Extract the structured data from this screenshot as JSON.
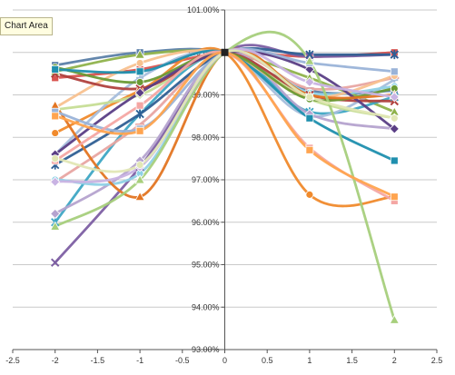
{
  "tooltip": {
    "label": "Chart Area"
  },
  "chart_data": {
    "type": "scatter",
    "title": "",
    "xlabel": "",
    "ylabel": "",
    "xlim": [
      -2.5,
      2.5
    ],
    "ylim": [
      93.0,
      101.0
    ],
    "y_unit": "%",
    "x_ticks": [
      -2.5,
      -2,
      -1.5,
      -1,
      -0.5,
      0,
      0.5,
      1,
      1.5,
      2,
      2.5
    ],
    "y_ticks": [
      93,
      94,
      95,
      96,
      97,
      98,
      99,
      100,
      101
    ],
    "x_tick_labels": [
      "-2.5",
      "-2",
      "-1.5",
      "-1",
      "-0.5",
      "0",
      "0.5",
      "1",
      "1.5",
      "2",
      "2.5"
    ],
    "y_tick_labels": [
      "93.00%",
      "94.00%",
      "95.00%",
      "96.00%",
      "97.00%",
      "98.00%",
      "99.00%",
      "100.00%",
      "101.00%"
    ],
    "grid": {
      "horizontal": true,
      "vertical": false
    },
    "x": [
      -2,
      -1,
      0,
      1,
      2
    ],
    "series": [
      {
        "color": "#5b7fa8",
        "marker": "square",
        "values": [
          99.7,
          100.0,
          100.0,
          99.1,
          99.1
        ]
      },
      {
        "color": "#d9534f",
        "marker": "square",
        "values": [
          99.4,
          99.6,
          100.0,
          99.9,
          100.0
        ]
      },
      {
        "color": "#8fb24b",
        "marker": "triangle",
        "values": [
          99.55,
          99.95,
          100.0,
          99.4,
          98.6
        ]
      },
      {
        "color": "#7d5fa3",
        "marker": "x",
        "values": [
          95.05,
          97.3,
          100.0,
          99.9,
          99.95
        ]
      },
      {
        "color": "#3ea6c4",
        "marker": "star",
        "values": [
          96.0,
          98.55,
          100.0,
          98.6,
          98.95
        ]
      },
      {
        "color": "#f08a2c",
        "marker": "circle",
        "values": [
          98.1,
          99.1,
          100.0,
          96.65,
          96.6
        ]
      },
      {
        "color": "#a6bedc",
        "marker": "plus",
        "values": [
          97.6,
          99.4,
          100.0,
          98.5,
          99.35
        ]
      },
      {
        "color": "#e8a5a2",
        "marker": "line",
        "values": [
          96.95,
          98.3,
          100.0,
          99.15,
          99.4
        ]
      },
      {
        "color": "#c6dd95",
        "marker": "diamond",
        "values": [
          98.65,
          99.0,
          100.0,
          98.9,
          98.45
        ]
      },
      {
        "color": "#b5a3cf",
        "marker": "diamond",
        "values": [
          96.2,
          97.45,
          100.0,
          98.55,
          98.2
        ]
      },
      {
        "color": "#8fd1e6",
        "marker": "circle",
        "values": [
          97.0,
          97.15,
          100.0,
          99.05,
          99.2
        ]
      },
      {
        "color": "#f8c18f",
        "marker": "circle",
        "values": [
          98.7,
          99.75,
          100.0,
          98.95,
          99.45
        ]
      },
      {
        "color": "#2f5f94",
        "marker": "star",
        "values": [
          97.35,
          98.55,
          100.0,
          99.95,
          99.95
        ]
      },
      {
        "color": "#b0413e",
        "marker": "x",
        "values": [
          99.5,
          99.15,
          100.0,
          99.0,
          98.85
        ]
      },
      {
        "color": "#6a9a35",
        "marker": "circle",
        "values": [
          99.65,
          99.3,
          100.0,
          98.9,
          99.15
        ]
      },
      {
        "color": "#5a3e85",
        "marker": "diamond",
        "values": [
          97.6,
          99.05,
          100.0,
          99.6,
          98.2
        ]
      },
      {
        "color": "#1f8fae",
        "marker": "square",
        "values": [
          99.6,
          99.55,
          100.0,
          98.45,
          97.45
        ]
      },
      {
        "color": "#e37522",
        "marker": "triangle",
        "values": [
          98.75,
          96.6,
          100.0,
          99.0,
          99.0
        ]
      },
      {
        "color": "#9ab3d8",
        "marker": "square",
        "values": [
          98.6,
          98.2,
          100.0,
          99.75,
          99.55
        ]
      },
      {
        "color": "#f4a6a3",
        "marker": "square",
        "values": [
          97.45,
          98.75,
          100.0,
          97.75,
          96.5
        ]
      },
      {
        "color": "#a7cf7c",
        "marker": "triangle",
        "values": [
          95.9,
          97.0,
          100.0,
          99.8,
          93.7
        ]
      },
      {
        "color": "#c9b3e3",
        "marker": "diamond",
        "values": [
          96.95,
          97.3,
          100.0,
          99.3,
          98.95
        ]
      },
      {
        "color": "#e2e7b5",
        "marker": "circle",
        "values": [
          97.5,
          97.35,
          100.0,
          98.95,
          98.45
        ]
      },
      {
        "color": "#ffa44f",
        "marker": "square",
        "values": [
          98.5,
          98.15,
          100.0,
          97.7,
          96.6
        ]
      }
    ]
  }
}
